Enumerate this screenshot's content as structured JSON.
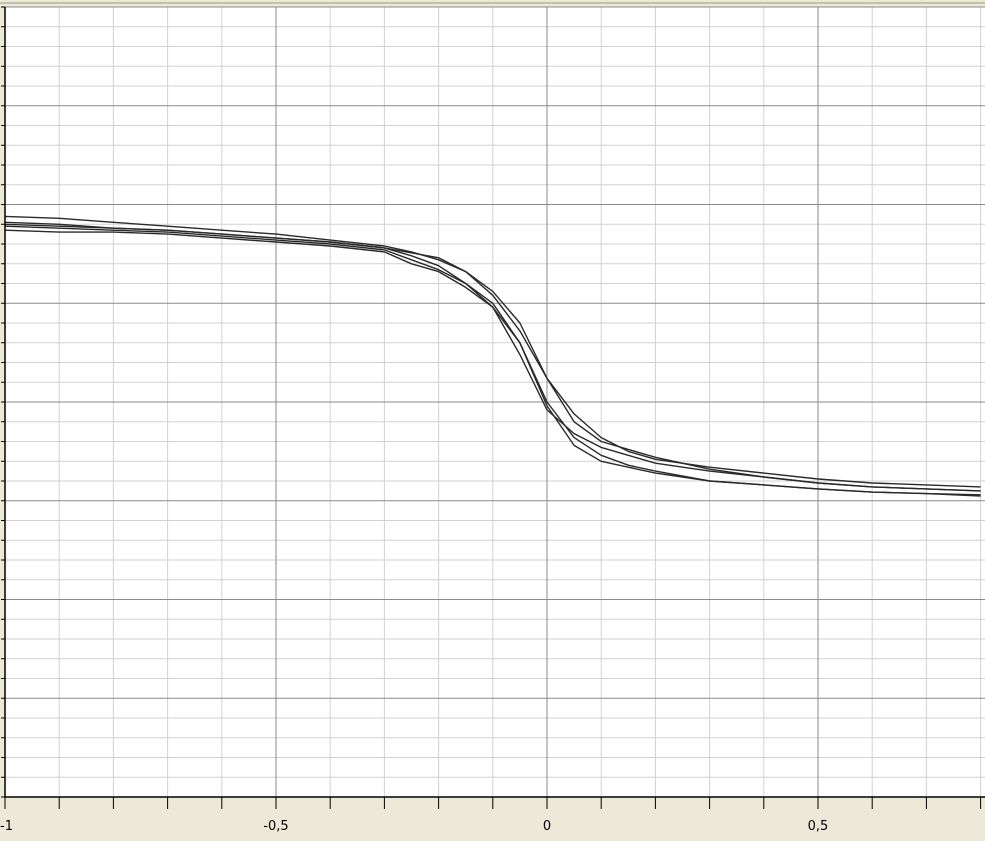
{
  "colors": {
    "panel_bg": "#ece9d8",
    "plot_bg": "#ffffff",
    "major_grid": "#8a8a8a",
    "minor_grid": "#d2d2d2",
    "axis": "#000000",
    "curve": "#2a2a2a"
  },
  "chart_data": {
    "type": "line",
    "title": "",
    "xlabel": "",
    "ylabel": "",
    "xlim": [
      -1,
      0.8
    ],
    "ylim": [
      -1,
      1
    ],
    "grid": true,
    "legend": "none",
    "x_ticks": [
      {
        "value": -1,
        "label": "-1"
      },
      {
        "value": -0.5,
        "label": "-0,5"
      },
      {
        "value": 0,
        "label": "0"
      },
      {
        "value": 0.5,
        "label": "0,5"
      }
    ],
    "x_minor_step": 0.1,
    "y_major_step": 0.25,
    "y_minor_step": 0.05,
    "series": [
      {
        "x": [
          -1,
          -0.9,
          -0.8,
          -0.7,
          -0.6,
          -0.5,
          -0.4,
          -0.3,
          -0.25,
          -0.2,
          -0.15,
          -0.1,
          -0.05,
          0,
          0.05,
          0.1,
          0.15,
          0.2,
          0.3,
          0.4,
          0.5,
          0.6,
          0.7,
          0.8
        ],
        "y": [
          0.47,
          0.465,
          0.455,
          0.445,
          0.435,
          0.425,
          0.41,
          0.395,
          0.38,
          0.36,
          0.33,
          0.28,
          0.2,
          0.06,
          -0.05,
          -0.1,
          -0.12,
          -0.14,
          -0.17,
          -0.19,
          -0.205,
          -0.215,
          -0.22,
          -0.225
        ]
      },
      {
        "x": [
          -1,
          -0.9,
          -0.8,
          -0.7,
          -0.6,
          -0.5,
          -0.4,
          -0.3,
          -0.25,
          -0.2,
          -0.15,
          -0.1,
          -0.05,
          0,
          0.05,
          0.1,
          0.15,
          0.2,
          0.3,
          0.4,
          0.5,
          0.6,
          0.7,
          0.8
        ],
        "y": [
          0.45,
          0.445,
          0.44,
          0.435,
          0.425,
          0.415,
          0.405,
          0.39,
          0.37,
          0.345,
          0.3,
          0.24,
          0.12,
          -0.02,
          -0.08,
          -0.115,
          -0.135,
          -0.155,
          -0.175,
          -0.19,
          -0.205,
          -0.215,
          -0.22,
          -0.225
        ]
      },
      {
        "x": [
          -1,
          -0.9,
          -0.8,
          -0.7,
          -0.6,
          -0.5,
          -0.4,
          -0.3,
          -0.25,
          -0.2,
          -0.15,
          -0.1,
          -0.05,
          0,
          0.05,
          0.1,
          0.15,
          0.2,
          0.3,
          0.4,
          0.5,
          0.6,
          0.7,
          0.8
        ],
        "y": [
          0.445,
          0.44,
          0.435,
          0.43,
          0.42,
          0.41,
          0.4,
          0.385,
          0.36,
          0.335,
          0.3,
          0.25,
          0.15,
          -0.01,
          -0.11,
          -0.15,
          -0.165,
          -0.18,
          -0.2,
          -0.21,
          -0.22,
          -0.228,
          -0.232,
          -0.235
        ]
      },
      {
        "x": [
          -1,
          -0.9,
          -0.8,
          -0.7,
          -0.6,
          -0.5,
          -0.4,
          -0.3,
          -0.25,
          -0.2,
          -0.15,
          -0.1,
          -0.05,
          0,
          0.05,
          0.1,
          0.15,
          0.2,
          0.3,
          0.4,
          0.5,
          0.6,
          0.7,
          0.8
        ],
        "y": [
          0.435,
          0.43,
          0.43,
          0.425,
          0.415,
          0.405,
          0.395,
          0.38,
          0.35,
          0.33,
          0.29,
          0.24,
          0.15,
          0.0,
          -0.09,
          -0.135,
          -0.16,
          -0.175,
          -0.2,
          -0.21,
          -0.22,
          -0.228,
          -0.232,
          -0.238
        ]
      },
      {
        "x": [
          -1,
          -0.9,
          -0.8,
          -0.7,
          -0.6,
          -0.5,
          -0.4,
          -0.3,
          -0.2,
          -0.15,
          -0.1,
          -0.05,
          0,
          0.05,
          0.1,
          0.15,
          0.2,
          0.3,
          0.4,
          0.5,
          0.6,
          0.7,
          0.8
        ],
        "y": [
          0.455,
          0.45,
          0.44,
          0.435,
          0.425,
          0.415,
          0.405,
          0.39,
          0.365,
          0.33,
          0.27,
          0.18,
          0.06,
          -0.03,
          -0.09,
          -0.125,
          -0.145,
          -0.165,
          -0.18,
          -0.195,
          -0.205,
          -0.21,
          -0.215
        ]
      }
    ]
  }
}
